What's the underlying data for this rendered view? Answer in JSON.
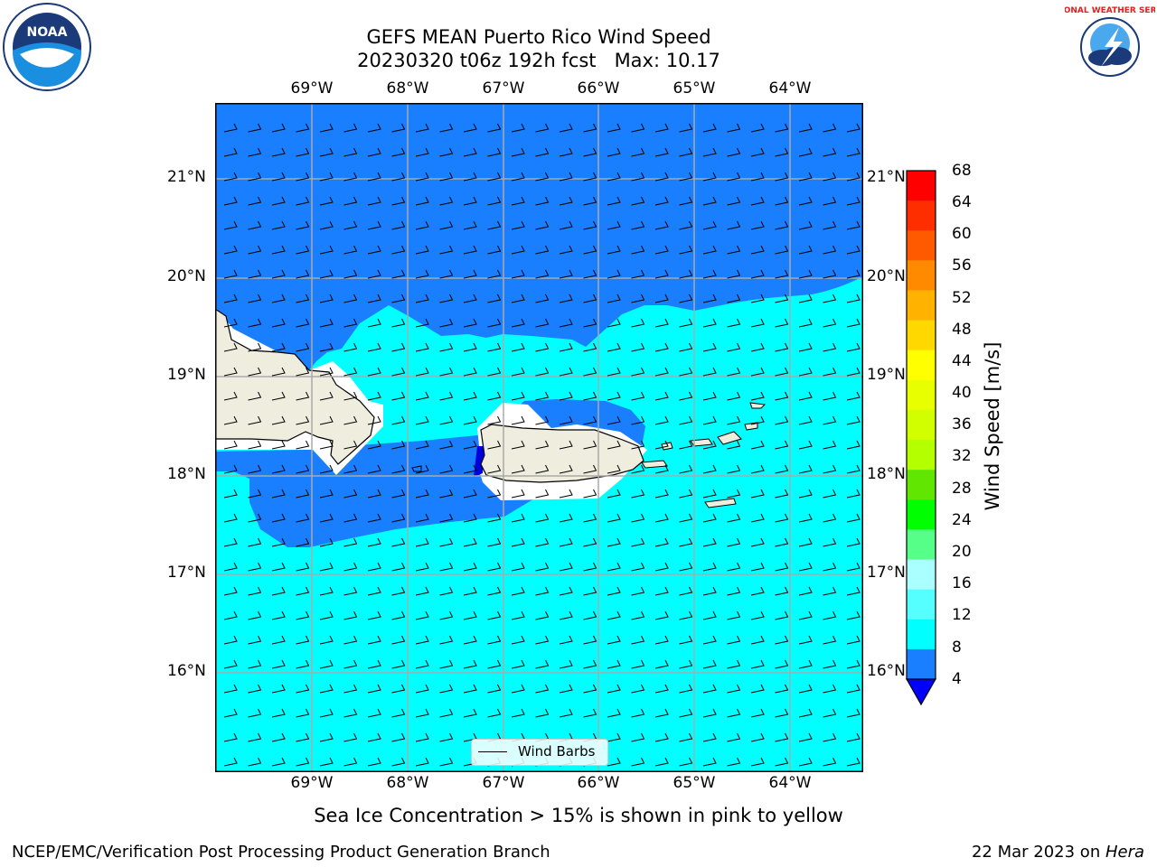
{
  "title": {
    "line1": "GEFS MEAN Puerto Rico Wind Speed",
    "line2": "20230320 t06z 192h fcst   Max: 10.17"
  },
  "map": {
    "lon_labels": [
      "69°W",
      "68°W",
      "67°W",
      "66°W",
      "65°W",
      "64°W"
    ],
    "lat_labels": [
      "21°N",
      "20°N",
      "19°N",
      "18°N",
      "17°N",
      "16°N"
    ],
    "colors": {
      "wind_4_8": "#1a7fff",
      "wind_8_12": "#00ffff",
      "land": "#efedde",
      "gridline": "#aaaaaa"
    }
  },
  "colorbar": {
    "label": "Wind Speed [m/s]",
    "ticks": [
      "68",
      "64",
      "60",
      "56",
      "52",
      "48",
      "44",
      "40",
      "36",
      "32",
      "28",
      "24",
      "20",
      "16",
      "12",
      "8",
      "4"
    ],
    "colors": [
      "#ff0000",
      "#ff2e00",
      "#ff5a00",
      "#ff8a00",
      "#ffb300",
      "#ffd800",
      "#ffff00",
      "#e8ff00",
      "#d2ff00",
      "#b4ff00",
      "#60e600",
      "#00ff00",
      "#55ff88",
      "#aaffff",
      "#55ffff",
      "#00ffff",
      "#1a7fff"
    ],
    "extend_color": "#0000ff"
  },
  "legend": {
    "label": "Wind Barbs"
  },
  "subtitle": "Sea Ice Concentration > 15% is shown in pink to yellow",
  "footer": {
    "left": "NCEP/EMC/Verification Post Processing Product Generation Branch",
    "right_prefix": "22 Mar 2023 on ",
    "right_host": "Hera"
  },
  "logos": {
    "left_text": "NOAA",
    "right_text": "NATIONAL WEATHER SERVICE"
  }
}
